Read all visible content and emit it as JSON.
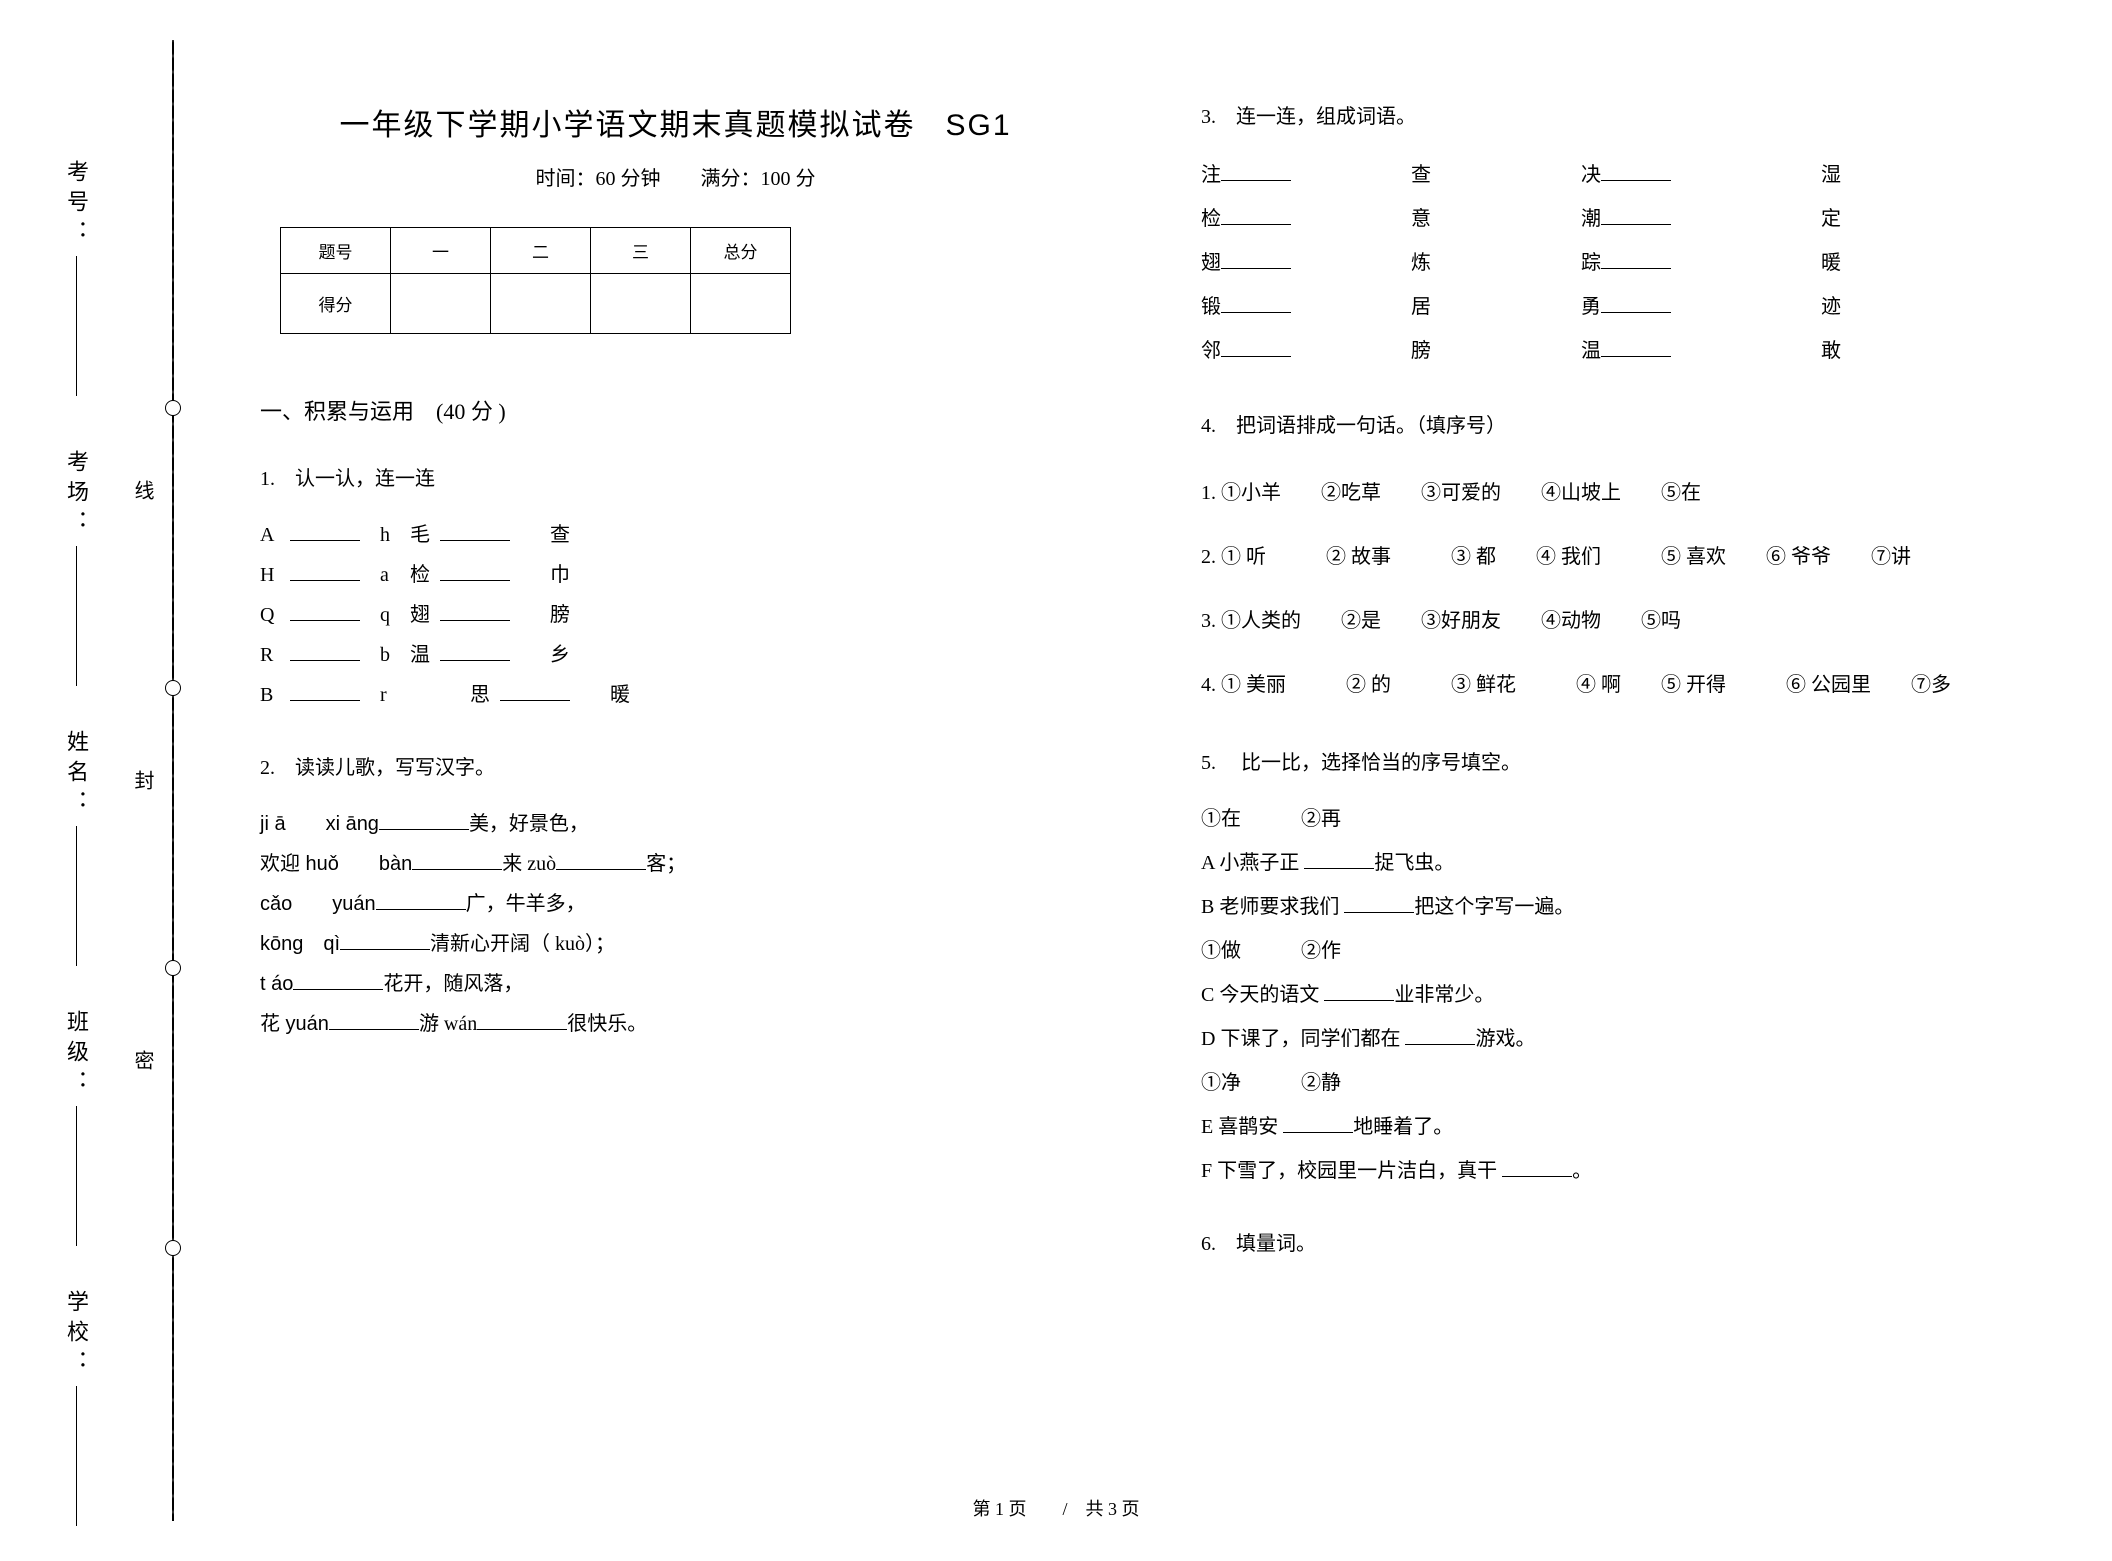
{
  "binding": {
    "labels": [
      "考号：",
      "考场：",
      "姓名：",
      "班级：",
      "学校："
    ],
    "seal_chars": [
      "线",
      "封",
      "密"
    ]
  },
  "header": {
    "title": "一年级下学期小学语文期末真题模拟试卷",
    "code": "SG1",
    "time_label": "时间：",
    "time_value": "60 分钟",
    "full_label": "满分：",
    "full_value": "100 分"
  },
  "score_table": {
    "headers": [
      "题号",
      "一",
      "二",
      "三",
      "总分"
    ],
    "row2_label": "得分"
  },
  "section1": {
    "title": "一、积累与运用　(40 分 )"
  },
  "q1": {
    "title": "1.　认一认，连一连",
    "rows": [
      [
        "A",
        "h",
        "毛",
        "查",
        ""
      ],
      [
        "H",
        "a",
        "检",
        "巾",
        ""
      ],
      [
        "Q",
        "q",
        "翅",
        "膀",
        ""
      ],
      [
        "R",
        "b",
        "温",
        "乡",
        ""
      ],
      [
        "B",
        "r",
        "",
        "思",
        "暖"
      ]
    ]
  },
  "q2": {
    "title": "2.　读读儿歌，写写汉字。",
    "lines": [
      {
        "pre": "ji ā　　xi āng",
        "post": "美，好景色，"
      },
      {
        "pre": "欢迎 huǒ　　bàn",
        "mid": "来 zuò",
        "post": "客；"
      },
      {
        "pre": "cǎo　　yuán",
        "post": "广，牛羊多，"
      },
      {
        "pre": "kōng　qì",
        "post": "清新心开阔（ kuò）；"
      },
      {
        "pre": "t áo",
        "post": "花开，随风落，"
      },
      {
        "pre": "花 yuán",
        "mid": "游 wán",
        "post": "很快乐。"
      }
    ]
  },
  "q3": {
    "title": "3.　连一连，组成词语。",
    "rows": [
      [
        "注",
        "查",
        "决",
        "湿"
      ],
      [
        "检",
        "意",
        "潮",
        "定"
      ],
      [
        "翅",
        "炼",
        "踪",
        "暖"
      ],
      [
        "锻",
        "居",
        "勇",
        "迹"
      ],
      [
        "邻",
        "膀",
        "温",
        "敢"
      ]
    ]
  },
  "q4": {
    "title": "4.　把词语排成一句话。（填序号）",
    "items": [
      "1. ①小羊　　②吃草　　③可爱的　　④山坡上　　⑤在",
      "2. ① 听　　　② 故事　　　③ 都　　④ 我们　　　⑤ 喜欢　　⑥ 爷爷　　⑦讲",
      "3. ①人类的　　②是　　③好朋友　　④动物　　⑤吗",
      "4. ① 美丽　　　② 的　　　③ 鲜花　　　④ 啊　　⑤ 开得　　　⑥ 公园里　　⑦多"
    ]
  },
  "q5": {
    "title": "5.　 比一比，选择恰当的序号填空。",
    "groups": [
      {
        "opts": "①在　　　②再",
        "lines": [
          "A 小燕子正 ______捉飞虫。",
          "B 老师要求我们 ______把这个字写一遍。"
        ]
      },
      {
        "opts": "①做　　　②作",
        "lines": [
          "C 今天的语文 ______业非常少。",
          "D 下课了，同学们都在  ______游戏。"
        ]
      },
      {
        "opts": "①净　　　②静",
        "lines": [
          "E 喜鹊安 ______地睡着了。",
          "F 下雪了，校园里一片洁白，真干  ______。"
        ]
      }
    ]
  },
  "q6": {
    "title": "6.　填量词。"
  },
  "footer": {
    "text": "第 1 页　　/　共 3 页"
  }
}
